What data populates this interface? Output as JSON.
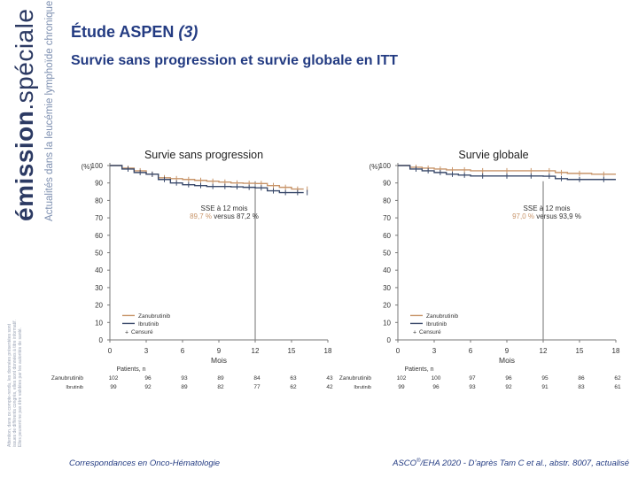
{
  "brand": {
    "name_bold": "émission",
    "name_rest": ".spéciale",
    "tagline": "Actualités dans la leucémie lymphoïde chronique",
    "disclaimer": "Attention, dans ce compte-rendu, les données présentées sont issues de différents congrès, elles sont données à titre informatif. Elles peuvent ne pas être validées par les autorités de santé."
  },
  "slide": {
    "title_main": "Étude ASPEN ",
    "title_italic": "(3)",
    "subtitle": "Survie sans progression et survie globale en ITT"
  },
  "footer": {
    "left": "Correspondances en Onco-Hématologie",
    "right_a": "ASCO",
    "right_reg": "®",
    "right_b": "/EHA 2020 - D’après Tam C et al., abstr. 8007, actualisé"
  },
  "colors": {
    "zanubrutinib": "#c8956a",
    "ibrutinib": "#3a4a6b",
    "axis": "#777777",
    "text": "#333333",
    "stat": "#c8956a"
  },
  "chart_data": [
    {
      "type": "line",
      "title": "Survie sans progression",
      "ylabel": "(%)",
      "xlabel": "Mois",
      "ylim": [
        0,
        100
      ],
      "xlim": [
        0,
        18
      ],
      "yticks": [
        0,
        10,
        20,
        30,
        40,
        50,
        60,
        70,
        80,
        90,
        100
      ],
      "xticks": [
        0,
        3,
        6,
        9,
        12,
        15,
        18
      ],
      "annotation_line1": "SSE à 12 mois",
      "annotation_line2_a": "89,7 %",
      "annotation_line2_b": " versus 87,2 %",
      "legend": {
        "zan": "Zanubrutinib",
        "ibr": "Ibrutinib",
        "cens": "Censuré"
      },
      "censor_symbol": "+",
      "series": [
        {
          "name": "Zanubrutinib",
          "color": "#c8956a",
          "points": [
            [
              0,
              100
            ],
            [
              1,
              98.5
            ],
            [
              2,
              97
            ],
            [
              3,
              95
            ],
            [
              4,
              93
            ],
            [
              5,
              92.5
            ],
            [
              6,
              92
            ],
            [
              7,
              91.5
            ],
            [
              8,
              91
            ],
            [
              9,
              90.5
            ],
            [
              10,
              90
            ],
            [
              11,
              89.8
            ],
            [
              12,
              89.7
            ],
            [
              13,
              88.5
            ],
            [
              14,
              87.5
            ],
            [
              15,
              86.5
            ],
            [
              16,
              86.5
            ]
          ]
        },
        {
          "name": "Ibrutinib",
          "color": "#3a4a6b",
          "points": [
            [
              0,
              100
            ],
            [
              1,
              98
            ],
            [
              2,
              96
            ],
            [
              3,
              95
            ],
            [
              4,
              92
            ],
            [
              5,
              90
            ],
            [
              6,
              89
            ],
            [
              7,
              88.5
            ],
            [
              8,
              88
            ],
            [
              9,
              88
            ],
            [
              10,
              87.8
            ],
            [
              11,
              87.5
            ],
            [
              12,
              87.2
            ],
            [
              13,
              85.5
            ],
            [
              14,
              84.5
            ],
            [
              15,
              84.5
            ],
            [
              16,
              84.5
            ]
          ]
        }
      ],
      "vline_x": 12,
      "risk_table": {
        "header": "Patients, n",
        "rows": [
          {
            "label": "Zanubrutinib",
            "values": [
              "102",
              "96",
              "93",
              "89",
              "84",
              "63",
              "43"
            ]
          },
          {
            "label": "Ibrutinib",
            "values": [
              "99",
              "92",
              "89",
              "82",
              "77",
              "62",
              "42"
            ]
          }
        ]
      }
    },
    {
      "type": "line",
      "title": "Survie globale",
      "ylabel": "(%)",
      "xlabel": "Mois",
      "ylim": [
        0,
        100
      ],
      "xlim": [
        0,
        18
      ],
      "yticks": [
        0,
        10,
        20,
        30,
        40,
        50,
        60,
        70,
        80,
        90,
        100
      ],
      "xticks": [
        0,
        3,
        6,
        9,
        12,
        15,
        18
      ],
      "annotation_line1": "SSE à 12 mois",
      "annotation_line2_a": "97,0 %",
      "annotation_line2_b": " versus 93,9 %",
      "legend": {
        "zan": "Zanubrutinib",
        "ibr": "Ibrutinib",
        "cens": "Censuré"
      },
      "censor_symbol": "+",
      "series": [
        {
          "name": "Zanubrutinib",
          "color": "#c8956a",
          "points": [
            [
              0,
              100
            ],
            [
              1,
              99
            ],
            [
              2,
              98.5
            ],
            [
              3,
              98
            ],
            [
              4,
              97.5
            ],
            [
              5,
              97.5
            ],
            [
              6,
              97
            ],
            [
              8,
              97
            ],
            [
              10,
              97
            ],
            [
              12,
              97
            ],
            [
              13,
              96
            ],
            [
              14,
              95.5
            ],
            [
              16,
              95
            ],
            [
              18,
              95
            ]
          ]
        },
        {
          "name": "Ibrutinib",
          "color": "#3a4a6b",
          "points": [
            [
              0,
              100
            ],
            [
              1,
              98
            ],
            [
              2,
              97
            ],
            [
              3,
              96
            ],
            [
              4,
              95
            ],
            [
              5,
              94.5
            ],
            [
              6,
              94
            ],
            [
              8,
              94
            ],
            [
              10,
              94
            ],
            [
              12,
              93.9
            ],
            [
              13,
              92.5
            ],
            [
              14,
              92
            ],
            [
              16,
              92
            ],
            [
              18,
              92
            ]
          ]
        }
      ],
      "vline_x": 12,
      "risk_table": {
        "header": "Patients, n",
        "rows": [
          {
            "label": "Zanubrutinib",
            "values": [
              "102",
              "100",
              "97",
              "96",
              "95",
              "86",
              "62"
            ]
          },
          {
            "label": "Ibrutinib",
            "values": [
              "99",
              "96",
              "93",
              "92",
              "91",
              "83",
              "61"
            ]
          }
        ]
      }
    }
  ]
}
